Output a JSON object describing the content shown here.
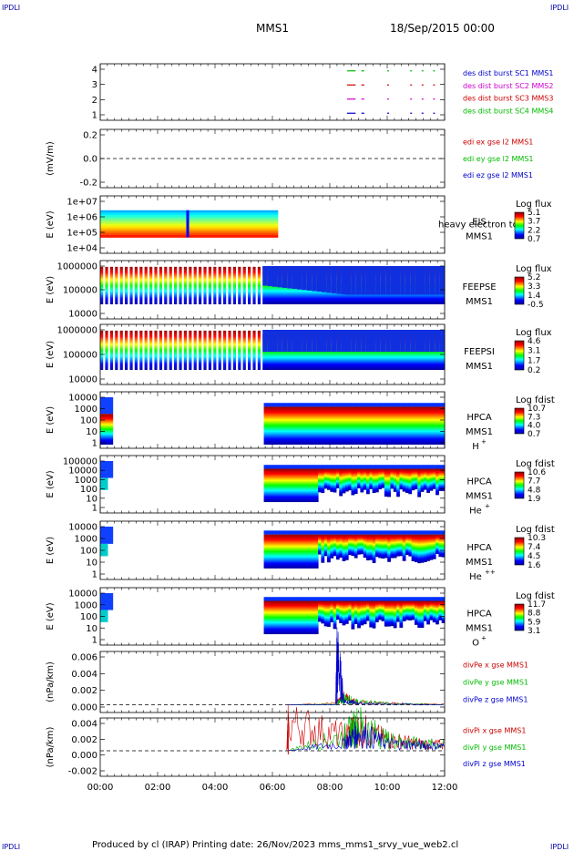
{
  "header": {
    "corner_label": "IPDLI",
    "mission": "MMS1",
    "datetime": "18/Sep/2015 00:00"
  },
  "footer": {
    "text": "Produced by cl (IRAP)   Printing date: 26/Nov/2023   mms_mms1_srvy_vue_web2.cl"
  },
  "time_axis": {
    "ticks": [
      "00:00",
      "02:00",
      "04:00",
      "06:00",
      "08:00",
      "10:00",
      "12:00"
    ],
    "range_hours": [
      0,
      12
    ]
  },
  "panels": [
    {
      "id": "burst",
      "ylabel": "",
      "yticks": [
        "4",
        "3",
        "2",
        "1"
      ],
      "legend": [
        {
          "text": "des dist burst SC1 MMS1",
          "color": "#0000cc"
        },
        {
          "text": "des dist burst SC2 MMS2",
          "color": "#cc00cc"
        },
        {
          "text": "des dist burst SC3 MMS3",
          "color": "#cc0000"
        },
        {
          "text": "des dist burst SC4 MMS4",
          "color": "#00bb00"
        }
      ]
    },
    {
      "id": "edi",
      "ylabel": "(mV/m)",
      "yticks": [
        "0.2",
        "0.0",
        "-0.2"
      ],
      "legend": [
        {
          "text": "edi ex gse l2 MMS1",
          "color": "#cc0000"
        },
        {
          "text": "edi ey gse l2 MMS1",
          "color": "#00bb00"
        },
        {
          "text": "edi ez gse l2 MMS1",
          "color": "#0000cc"
        }
      ]
    },
    {
      "id": "eis",
      "ylabel": "E (eV)",
      "yticks": [
        "1e+07",
        "1e+06",
        "1e+05",
        "1e+04"
      ],
      "side_labels": [
        "EIS",
        "MMS1"
      ],
      "overlap_text": "heavy electron tof",
      "colorbar": {
        "title": "Log flux",
        "ticks": [
          "5.1",
          "3.7",
          "2.2",
          "0.7"
        ]
      }
    },
    {
      "id": "feepse",
      "ylabel": "E (eV)",
      "yticks": [
        "1000000",
        "100000",
        "10000"
      ],
      "side_labels": [
        "FEEPSE",
        "MMS1"
      ],
      "colorbar": {
        "title": "Log flux",
        "ticks": [
          "5.2",
          "3.3",
          "1.4",
          "-0.5"
        ]
      }
    },
    {
      "id": "feepsi",
      "ylabel": "E (eV)",
      "yticks": [
        "1000000",
        "100000",
        "10000"
      ],
      "side_labels": [
        "FEEPSI",
        "MMS1"
      ],
      "colorbar": {
        "title": "Log flux",
        "ticks": [
          "4.6",
          "3.1",
          "1.7",
          "0.2"
        ]
      }
    },
    {
      "id": "hpca_h",
      "ylabel": "E (eV)",
      "yticks": [
        "10000",
        "1000",
        "100",
        "10",
        "1"
      ],
      "side_labels": [
        "HPCA",
        "MMS1"
      ],
      "species": "H",
      "species_charge": "+",
      "colorbar": {
        "title": "Log fdist",
        "ticks": [
          "10.7",
          "7.3",
          "4.0",
          "0.7"
        ]
      }
    },
    {
      "id": "hpca_he",
      "ylabel": "E (eV)",
      "yticks": [
        "100000",
        "10000",
        "1000",
        "100",
        "10",
        "1"
      ],
      "side_labels": [
        "HPCA",
        "MMS1"
      ],
      "species": "He",
      "species_charge": "+",
      "colorbar": {
        "title": "Log fdist",
        "ticks": [
          "10.6",
          "7.7",
          "4.8",
          "1.9"
        ]
      }
    },
    {
      "id": "hpca_he2",
      "ylabel": "E (eV)",
      "yticks": [
        "10000",
        "1000",
        "100",
        "10",
        "1"
      ],
      "side_labels": [
        "HPCA",
        "MMS1"
      ],
      "species": "He",
      "species_charge": "++",
      "colorbar": {
        "title": "Log fdist",
        "ticks": [
          "10.3",
          "7.4",
          "4.5",
          "1.6"
        ]
      }
    },
    {
      "id": "hpca_o",
      "ylabel": "E (eV)",
      "yticks": [
        "10000",
        "1000",
        "100",
        "10",
        "1"
      ],
      "side_labels": [
        "HPCA",
        "MMS1"
      ],
      "species": "O",
      "species_charge": "+",
      "colorbar": {
        "title": "Log fdist",
        "ticks": [
          "11.7",
          "8.8",
          "5.9",
          "3.1"
        ]
      }
    },
    {
      "id": "divpe",
      "ylabel": "(nPa/km)",
      "yticks": [
        "0.006",
        "0.004",
        "0.002",
        "0.000"
      ],
      "legend": [
        {
          "text": "divPe x gse MMS1",
          "color": "#cc0000"
        },
        {
          "text": "divPe y gse MMS1",
          "color": "#00bb00"
        },
        {
          "text": "divPe z gse MMS1",
          "color": "#0000cc"
        }
      ]
    },
    {
      "id": "divpi",
      "ylabel": "(nPa/km)",
      "yticks": [
        "0.004",
        "0.002",
        "0.000",
        "-0.002"
      ],
      "legend": [
        {
          "text": "divPi x gse MMS1",
          "color": "#cc0000"
        },
        {
          "text": "divPi y gse MMS1",
          "color": "#00bb00"
        },
        {
          "text": "divPi z gse MMS1",
          "color": "#0000cc"
        }
      ]
    }
  ],
  "chart_data": [
    {
      "type": "line",
      "title": "des dist burst",
      "x_range_hours": [
        0,
        12
      ],
      "ylim": [
        0.5,
        4.5
      ],
      "series": [
        {
          "name": "des dist burst SC1 MMS1",
          "y": 1,
          "intervals_hours": [
            [
              8.6,
              8.9
            ],
            [
              9.1,
              9.2
            ],
            [
              10.0,
              10.05
            ],
            [
              10.8,
              10.85
            ],
            [
              11.2,
              11.25
            ],
            [
              11.6,
              11.65
            ]
          ]
        },
        {
          "name": "des dist burst SC2 MMS2",
          "y": 2,
          "intervals_hours": [
            [
              8.6,
              8.9
            ],
            [
              9.1,
              9.2
            ],
            [
              10.0,
              10.05
            ],
            [
              10.8,
              10.85
            ],
            [
              11.2,
              11.25
            ],
            [
              11.6,
              11.65
            ]
          ]
        },
        {
          "name": "des dist burst SC3 MMS3",
          "y": 3,
          "intervals_hours": [
            [
              8.6,
              8.9
            ],
            [
              9.1,
              9.2
            ],
            [
              10.0,
              10.05
            ],
            [
              10.8,
              10.85
            ],
            [
              11.2,
              11.25
            ],
            [
              11.6,
              11.65
            ]
          ]
        },
        {
          "name": "des dist burst SC4 MMS4",
          "y": 4,
          "intervals_hours": [
            [
              8.6,
              8.9
            ],
            [
              9.1,
              9.2
            ],
            [
              10.0,
              10.05
            ],
            [
              10.8,
              10.85
            ],
            [
              11.2,
              11.25
            ],
            [
              11.6,
              11.65
            ]
          ]
        }
      ]
    },
    {
      "type": "line",
      "title": "edi gse l2",
      "x_range_hours": [
        0,
        12
      ],
      "ylim": [
        -0.3,
        0.3
      ],
      "zero_line": true,
      "series": [
        {
          "name": "edi ex gse l2 MMS1",
          "values": []
        },
        {
          "name": "edi ey gse l2 MMS1",
          "values": []
        },
        {
          "name": "edi ez gse l2 MMS1",
          "values": []
        }
      ]
    },
    {
      "type": "heatmap",
      "title": "EIS",
      "y_log_range": [
        4,
        7
      ],
      "coverage_hours": [
        0,
        6.2
      ],
      "energy_log_range": [
        4.8,
        6.0
      ],
      "z_range": [
        0.7,
        5.1
      ]
    },
    {
      "type": "heatmap",
      "title": "FEEPSE",
      "y_log_range": [
        4,
        6
      ],
      "coverage_hours": [
        0,
        12
      ],
      "z_range": [
        -0.5,
        5.2
      ]
    },
    {
      "type": "heatmap",
      "title": "FEEPSI",
      "y_log_range": [
        4,
        6
      ],
      "coverage_hours": [
        0,
        12
      ],
      "z_range": [
        0.2,
        4.6
      ]
    },
    {
      "type": "heatmap",
      "title": "HPCA H+",
      "y_log_range": [
        0,
        4.3
      ],
      "coverage_hours": [
        [
          0,
          0.45
        ],
        [
          5.7,
          12
        ]
      ],
      "z_range": [
        0.7,
        10.7
      ]
    },
    {
      "type": "heatmap",
      "title": "HPCA He+",
      "y_log_range": [
        0,
        5
      ],
      "coverage_hours": [
        [
          0,
          0.45
        ],
        [
          5.7,
          12
        ]
      ],
      "z_range": [
        1.9,
        10.6
      ]
    },
    {
      "type": "heatmap",
      "title": "HPCA He++",
      "y_log_range": [
        0,
        4.3
      ],
      "coverage_hours": [
        [
          0,
          0.45
        ],
        [
          5.7,
          12
        ]
      ],
      "z_range": [
        1.6,
        10.3
      ]
    },
    {
      "type": "heatmap",
      "title": "HPCA O+",
      "y_log_range": [
        0,
        4.3
      ],
      "coverage_hours": [
        [
          0,
          0.45
        ],
        [
          5.7,
          12
        ]
      ],
      "z_range": [
        3.1,
        11.7
      ]
    },
    {
      "type": "line",
      "title": "divPe gse",
      "x_range_hours": [
        0,
        12
      ],
      "ylim": [
        -0.001,
        0.007
      ],
      "zero_line": true,
      "series": [
        {
          "name": "divPe x gse MMS1",
          "x": [
            6.5,
            8.2,
            8.5,
            9.0,
            10.0,
            11.0,
            12.0
          ],
          "y": [
            0.0,
            0.0002,
            0.001,
            0.0003,
            0.0002,
            0.0001,
            0.0001
          ]
        },
        {
          "name": "divPe y gse MMS1",
          "x": [
            6.5,
            8.2,
            8.5,
            9.0,
            10.0,
            11.0,
            12.0
          ],
          "y": [
            0.0,
            0.0001,
            0.0008,
            0.0004,
            0.0002,
            0.0001,
            0.0
          ]
        },
        {
          "name": "divPe z gse MMS1",
          "x": [
            6.5,
            8.2,
            8.25,
            8.5,
            9.0,
            10.0,
            12.0
          ],
          "y": [
            0.0,
            0.0,
            0.0063,
            0.0005,
            0.0002,
            0.0001,
            0.0
          ]
        }
      ]
    },
    {
      "type": "line",
      "title": "divPi gse",
      "x_range_hours": [
        0,
        12
      ],
      "ylim": [
        -0.0035,
        0.0045
      ],
      "zero_line": true,
      "series": [
        {
          "name": "divPi x gse MMS1",
          "x": [
            6.5,
            6.55,
            8.5,
            9.0,
            10.0,
            11.0,
            12.0
          ],
          "y": [
            0.0,
            0.0038,
            0.002,
            0.003,
            0.0015,
            0.001,
            0.0008
          ]
        },
        {
          "name": "divPi y gse MMS1",
          "x": [
            6.5,
            8.5,
            9.0,
            10.0,
            11.0,
            12.0
          ],
          "y": [
            0.0,
            0.002,
            0.0035,
            0.0015,
            0.001,
            0.0008
          ]
        },
        {
          "name": "divPi z gse MMS1",
          "x": [
            6.5,
            8.5,
            9.0,
            10.0,
            11.0,
            12.0
          ],
          "y": [
            0.0,
            0.001,
            0.0025,
            0.001,
            0.0008,
            0.0006
          ]
        }
      ]
    }
  ]
}
